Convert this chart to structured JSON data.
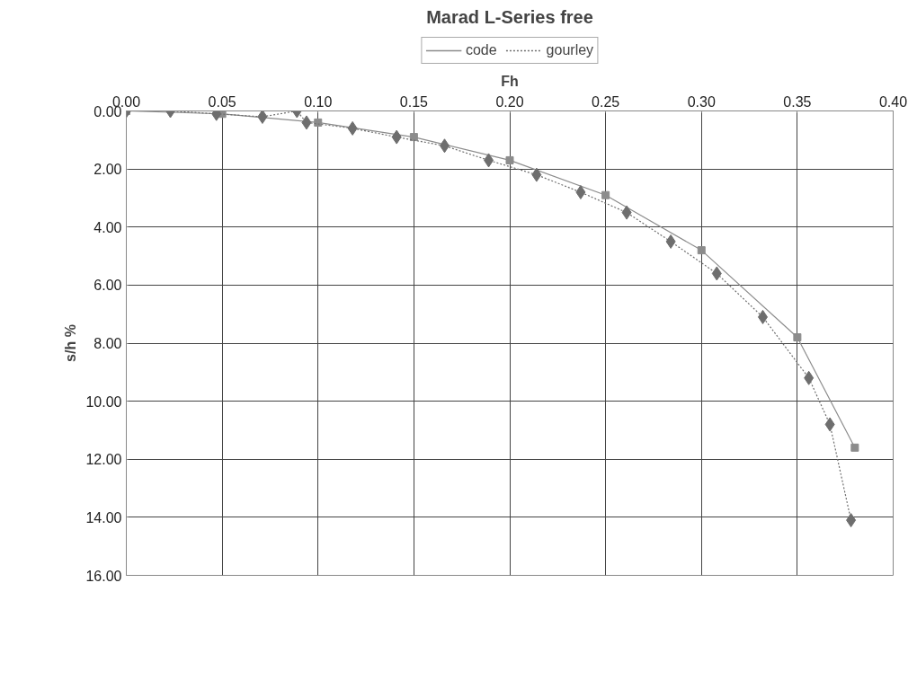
{
  "chart_data": {
    "type": "line",
    "title": "Marad L-Series free",
    "xlabel": "Fh",
    "ylabel": "s/h %",
    "xlim": [
      0,
      0.4
    ],
    "ylim": [
      16,
      0
    ],
    "xticks": [
      {
        "value": 0,
        "label": "0.00"
      },
      {
        "value": 0.05,
        "label": "0.05"
      },
      {
        "value": 0.1,
        "label": "0.10"
      },
      {
        "value": 0.15,
        "label": "0.15"
      },
      {
        "value": 0.2,
        "label": "0.20"
      },
      {
        "value": 0.25,
        "label": "0.25"
      },
      {
        "value": 0.3,
        "label": "0.30"
      },
      {
        "value": 0.35,
        "label": "0.35"
      },
      {
        "value": 0.4,
        "label": "0.40"
      }
    ],
    "yticks": [
      {
        "value": 0,
        "label": "0.00"
      },
      {
        "value": 2,
        "label": "2.00"
      },
      {
        "value": 4,
        "label": "4.00"
      },
      {
        "value": 6,
        "label": "6.00"
      },
      {
        "value": 8,
        "label": "8.00"
      },
      {
        "value": 10,
        "label": "10.00"
      },
      {
        "value": 12,
        "label": "12.00"
      },
      {
        "value": 14,
        "label": "14.00"
      },
      {
        "value": 16,
        "label": "16.00"
      }
    ],
    "grid": true,
    "legend": "top",
    "series": [
      {
        "name": "code",
        "color": "#8c8c8c",
        "marker": "square",
        "line_style": "solid",
        "x": [
          0,
          0.05,
          0.1,
          0.15,
          0.2,
          0.25,
          0.3,
          0.35,
          0.38
        ],
        "values": [
          0,
          0.1,
          0.4,
          0.9,
          1.7,
          2.9,
          4.8,
          7.8,
          11.6
        ]
      },
      {
        "name": "gourley",
        "color": "#6e6e6e",
        "marker": "diamond",
        "line_style": "dotted",
        "x": [
          0,
          0.023,
          0.047,
          0.071,
          0.089,
          0.094,
          0.118,
          0.141,
          0.166,
          0.189,
          0.214,
          0.237,
          0.261,
          0.284,
          0.308,
          0.332,
          0.356,
          0.367,
          0.378
        ],
        "values": [
          0,
          0,
          0.1,
          0.2,
          0,
          0.4,
          0.6,
          0.9,
          1.2,
          1.7,
          2.2,
          2.8,
          3.5,
          4.5,
          5.6,
          7.1,
          9.2,
          10.8,
          14.1
        ]
      }
    ]
  }
}
